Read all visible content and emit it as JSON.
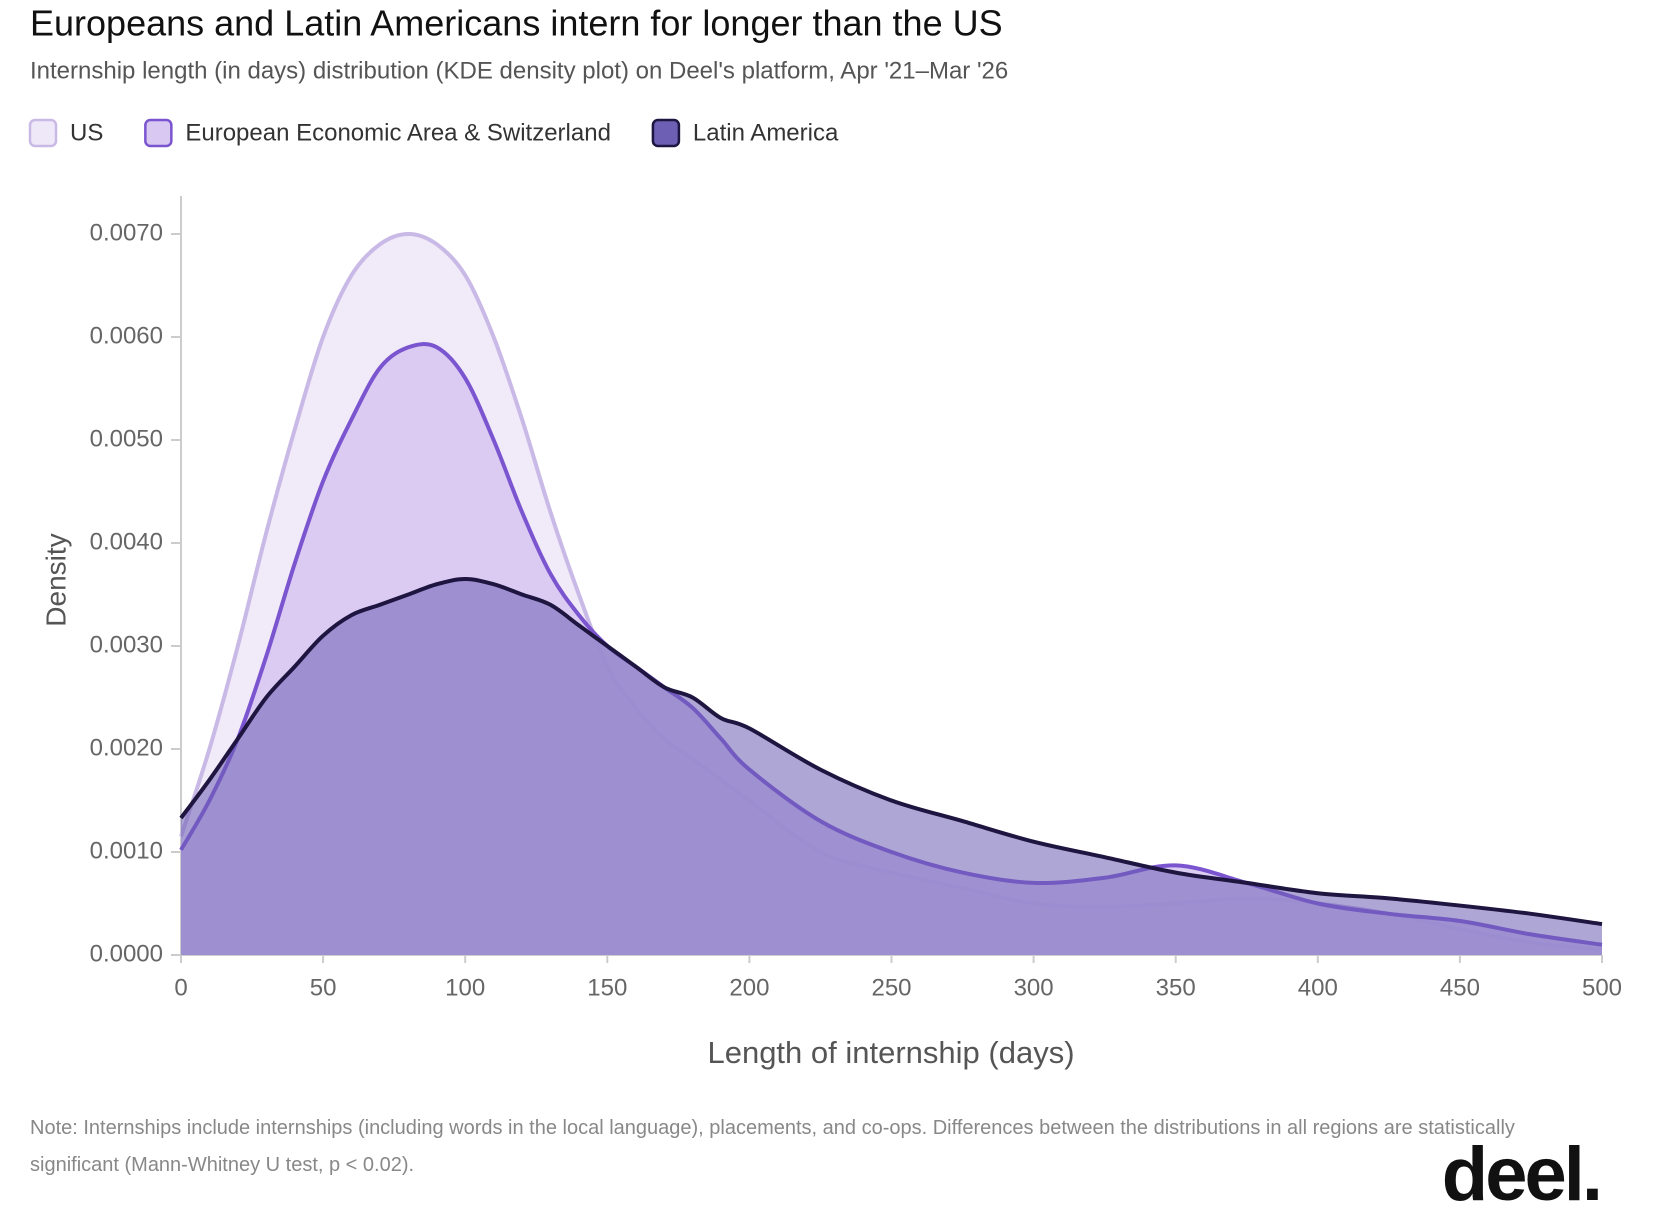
{
  "chart_data": {
    "type": "area",
    "title": "Europeans and Latin Americans intern for longer than the US",
    "subtitle": "Internship length (in days) distribution (KDE density plot) on Deel's platform, Apr '21–Mar '26",
    "x_label": "Length of internship (days)",
    "y_label": "Density",
    "x": [
      0,
      10,
      20,
      30,
      40,
      50,
      60,
      70,
      80,
      90,
      100,
      110,
      120,
      130,
      140,
      150,
      160,
      170,
      180,
      190,
      200,
      225,
      250,
      275,
      300,
      325,
      350,
      375,
      400,
      425,
      450,
      475,
      500
    ],
    "series": [
      {
        "name": "US",
        "color": "#c9b9e6",
        "fill": "#efe8f8",
        "values": [
          0.00115,
          0.002,
          0.003,
          0.0041,
          0.0051,
          0.006,
          0.0066,
          0.0069,
          0.007,
          0.0069,
          0.0066,
          0.006,
          0.0052,
          0.0043,
          0.0035,
          0.0028,
          0.0024,
          0.0021,
          0.0019,
          0.0017,
          0.0015,
          0.001,
          0.0008,
          0.00065,
          0.0005,
          0.00047,
          0.0005,
          0.00055,
          0.0005,
          0.0004,
          0.00025,
          0.00012,
          5e-05
        ]
      },
      {
        "name": "European Economic Area & Switzerland",
        "color": "#7a55cf",
        "fill": "#d8c8f2",
        "values": [
          0.00102,
          0.0015,
          0.0021,
          0.0029,
          0.0038,
          0.0046,
          0.0052,
          0.0057,
          0.0059,
          0.0059,
          0.0056,
          0.005,
          0.0043,
          0.0037,
          0.0033,
          0.003,
          0.0028,
          0.0026,
          0.0024,
          0.0021,
          0.0018,
          0.0013,
          0.001,
          0.0008,
          0.0007,
          0.00075,
          0.00087,
          0.0007,
          0.0005,
          0.0004,
          0.00033,
          0.0002,
          0.0001
        ]
      },
      {
        "name": "Latin America",
        "color": "#1e1640",
        "fill": "#6c5fb4",
        "values": [
          0.00133,
          0.0017,
          0.0021,
          0.0025,
          0.0028,
          0.0031,
          0.0033,
          0.0034,
          0.0035,
          0.0036,
          0.00365,
          0.0036,
          0.0035,
          0.0034,
          0.0032,
          0.003,
          0.0028,
          0.0026,
          0.0025,
          0.0023,
          0.0022,
          0.0018,
          0.0015,
          0.0013,
          0.0011,
          0.00095,
          0.0008,
          0.0007,
          0.0006,
          0.00055,
          0.00048,
          0.0004,
          0.0003
        ]
      }
    ],
    "xlim": [
      0,
      500
    ],
    "xticks": [
      0,
      50,
      100,
      150,
      200,
      250,
      300,
      350,
      400,
      450,
      500
    ],
    "ylim": [
      0,
      0.0074
    ],
    "yticks": [
      {
        "value": 0,
        "label": "0.0000"
      },
      {
        "value": 0.001,
        "label": "0.0010"
      },
      {
        "value": 0.002,
        "label": "0.0020"
      },
      {
        "value": 0.003,
        "label": "0.0030"
      },
      {
        "value": 0.004,
        "label": "0.0040"
      },
      {
        "value": 0.005,
        "label": "0.0050"
      },
      {
        "value": 0.006,
        "label": "0.0060"
      },
      {
        "value": 0.007,
        "label": "0.0070"
      }
    ],
    "note": "Note: Internships include internships (including words in the local language), placements, and co-ops. Differences between the distributions in all regions are statistically significant (Mann-Whitney U test, p < 0.02).",
    "logo": "deel."
  }
}
